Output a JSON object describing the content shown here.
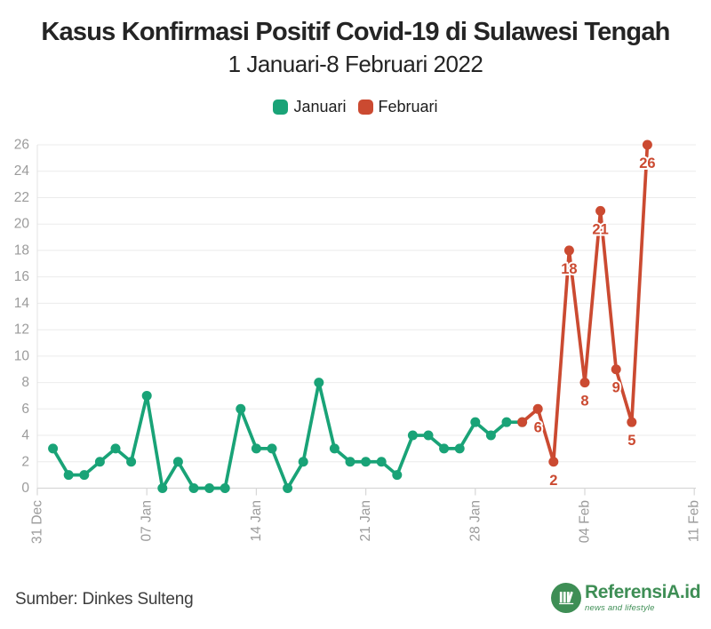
{
  "header": {
    "title": "Kasus Konfirmasi Positif Covid-19 di Sulawesi Tengah",
    "subtitle": "1 Januari-8 Februari 2022"
  },
  "footer": {
    "source_text": "Sumber: Dinkes Sulteng",
    "logo": {
      "brand": "ReferensiA.id",
      "tagline": "news and lifestyle",
      "color": "#3e8e55",
      "icon": "books-icon"
    }
  },
  "colors": {
    "january_green": "#19a377",
    "february_red": "#cb4a31",
    "grid_line": "#ebebeb",
    "axis_line": "#d7d7d7",
    "axis_text": "#9b9b9b",
    "title_text": "#242424"
  },
  "chart_data": {
    "type": "line",
    "title": "Kasus Konfirmasi Positif Covid-19 di Sulawesi Tengah",
    "subtitle": "1 Januari-8 Februari 2022",
    "ylabel": "",
    "xlabel": "",
    "ylim": [
      0,
      26
    ],
    "ytick_step": 2,
    "grid": true,
    "legend_position": "top-center",
    "x_axis": {
      "day0": "31 Dec",
      "tick_day_indexes": [
        0,
        7,
        14,
        21,
        28,
        35,
        42
      ],
      "tick_labels": [
        "31 Dec",
        "07 Jan",
        "14 Jan",
        "21 Jan",
        "28 Jan",
        "04 Feb",
        "11 Feb"
      ]
    },
    "series": [
      {
        "name": "Januari",
        "color": "#19a377",
        "date_range": "1 Jan 2022 - 31 Jan 2022",
        "start_day_index": 1,
        "values": [
          3,
          1,
          1,
          2,
          3,
          2,
          7,
          0,
          2,
          0,
          0,
          0,
          6,
          3,
          3,
          0,
          2,
          8,
          3,
          2,
          2,
          2,
          1,
          4,
          4,
          3,
          3,
          5,
          4,
          5,
          5
        ]
      },
      {
        "name": "Februari",
        "color": "#cb4a31",
        "date_range": "31 Jan 2022 - 8 Feb 2022",
        "start_day_index": 31,
        "values": [
          5,
          6,
          2,
          18,
          8,
          21,
          9,
          5,
          26
        ],
        "point_labels": [
          "",
          "6",
          "2",
          "18",
          "8",
          "21",
          "9",
          "5",
          "26"
        ]
      }
    ]
  }
}
